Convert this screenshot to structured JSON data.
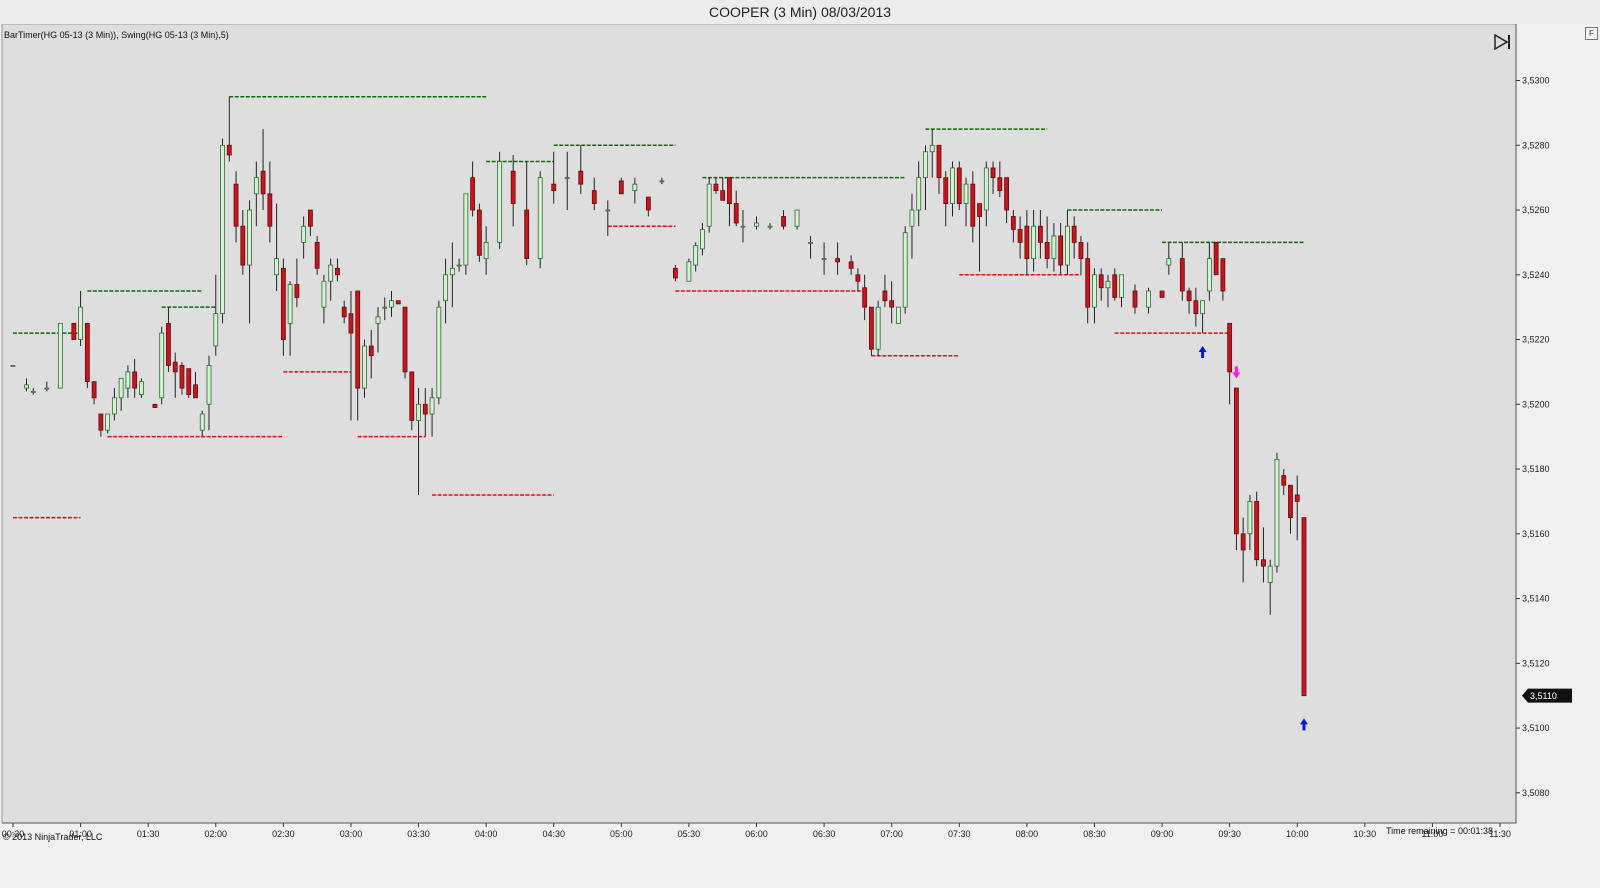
{
  "window": {
    "title": "COOPER (3 Min)  08/03/2013"
  },
  "chart": {
    "indicator_label": "BarTimer(HG 05-13 (3 Min)), Swing(HG 05-13 (3 Min),5)",
    "copyright": "© 2013 NinjaTrader, LLC",
    "time_remaining": "Time remaining = 00:01:38",
    "last_price": "3,5110",
    "menu_button": "F",
    "colors": {
      "up_fill": "#d6f0d6",
      "up_border": "#2e6b2e",
      "down_fill": "#c4161c",
      "swing_high": "#0a6e0a",
      "swing_low": "#e01010",
      "arrow_up": "#0018e0",
      "arrow_down": "#ff1ad9",
      "background": "#dedede"
    },
    "icons": {
      "scroll_end": "scroll-to-end-icon"
    }
  },
  "chart_data": {
    "type": "candlestick",
    "x_ticks": [
      "00:30",
      "01:00",
      "01:30",
      "02:00",
      "02:30",
      "03:00",
      "03:30",
      "04:00",
      "04:30",
      "05:00",
      "05:30",
      "06:00",
      "06:30",
      "07:00",
      "07:30",
      "08:00",
      "08:30",
      "09:00",
      "09:30",
      "10:00",
      "10:30",
      "11:00",
      "11:30"
    ],
    "y_ticks": [
      "3,5080",
      "3,5100",
      "3,5120",
      "3,5140",
      "3,5160",
      "3,5180",
      "3,5200",
      "3,5220",
      "3,5240",
      "3,5260",
      "3,5280",
      "3,5300"
    ],
    "y_values": [
      3.508,
      3.51,
      3.512,
      3.514,
      3.516,
      3.518,
      3.52,
      3.522,
      3.524,
      3.526,
      3.528,
      3.53
    ],
    "ylim": [
      3.5072,
      3.5318
    ],
    "xlim": [
      "00:30",
      "11:30"
    ],
    "grid": false,
    "candles": [
      [
        "00:30",
        3.5212,
        3.5212,
        3.5212,
        3.5212
      ],
      [
        "00:36",
        3.5205,
        3.5208,
        3.5204,
        3.5206
      ],
      [
        "00:39",
        3.5204,
        3.5205,
        3.5203,
        3.5204
      ],
      [
        "00:45",
        3.5205,
        3.5207,
        3.5204,
        3.5205
      ],
      [
        "00:51",
        3.5205,
        3.5225,
        3.5205,
        3.5225
      ],
      [
        "00:57",
        3.5225,
        3.5225,
        3.522,
        3.522
      ],
      [
        "01:00",
        3.522,
        3.5235,
        3.5218,
        3.523
      ],
      [
        "01:03",
        3.5225,
        3.5225,
        3.5205,
        3.5207
      ],
      [
        "01:06",
        3.5207,
        3.5207,
        3.52,
        3.5202
      ],
      [
        "01:09",
        3.5197,
        3.5197,
        3.519,
        3.5192
      ],
      [
        "01:12",
        3.5192,
        3.5197,
        3.5191,
        3.5197
      ],
      [
        "01:15",
        3.5197,
        3.5205,
        3.5195,
        3.5202
      ],
      [
        "01:18",
        3.5202,
        3.5208,
        3.5198,
        3.5208
      ],
      [
        "01:21",
        3.5205,
        3.5212,
        3.5202,
        3.521
      ],
      [
        "01:24",
        3.521,
        3.5214,
        3.5202,
        3.5205
      ],
      [
        "01:27",
        3.5203,
        3.5208,
        3.5202,
        3.5207
      ],
      [
        "01:33",
        3.52,
        3.52,
        3.5199,
        3.5199
      ],
      [
        "01:36",
        3.5202,
        3.5224,
        3.52,
        3.5222
      ],
      [
        "01:39",
        3.5225,
        3.523,
        3.521,
        3.5212
      ],
      [
        "01:42",
        3.5213,
        3.5216,
        3.5202,
        3.521
      ],
      [
        "01:45",
        3.5212,
        3.5213,
        3.5203,
        3.5205
      ],
      [
        "01:48",
        3.5211,
        3.5211,
        3.5202,
        3.5203
      ],
      [
        "01:51",
        3.5206,
        3.521,
        3.5202,
        3.5202
      ],
      [
        "01:54",
        3.5192,
        3.5198,
        3.519,
        3.5197
      ],
      [
        "01:57",
        3.52,
        3.5215,
        3.5192,
        3.5212
      ],
      [
        "02:00",
        3.5218,
        3.524,
        3.5215,
        3.5228
      ],
      [
        "02:03",
        3.5228,
        3.5282,
        3.5225,
        3.528
      ],
      [
        "02:06",
        3.528,
        3.5295,
        3.5275,
        3.5277
      ],
      [
        "02:09",
        3.5268,
        3.5272,
        3.525,
        3.5255
      ],
      [
        "02:12",
        3.5255,
        3.526,
        3.524,
        3.5243
      ],
      [
        "02:15",
        3.5243,
        3.5263,
        3.5225,
        3.526
      ],
      [
        "02:18",
        3.5265,
        3.5275,
        3.5255,
        3.527
      ],
      [
        "02:21",
        3.5272,
        3.5285,
        3.526,
        3.5265
      ],
      [
        "02:24",
        3.5265,
        3.5275,
        3.525,
        3.5255
      ],
      [
        "02:27",
        3.524,
        3.5262,
        3.5235,
        3.5245
      ],
      [
        "02:30",
        3.5242,
        3.5245,
        3.5215,
        3.522
      ],
      [
        "02:33",
        3.5225,
        3.5238,
        3.5215,
        3.5237
      ],
      [
        "02:36",
        3.5237,
        3.5245,
        3.523,
        3.5233
      ],
      [
        "02:39",
        3.525,
        3.5258,
        3.5245,
        3.5255
      ],
      [
        "02:42",
        3.526,
        3.526,
        3.5252,
        3.5255
      ],
      [
        "02:45",
        3.525,
        3.5252,
        3.524,
        3.5242
      ],
      [
        "02:48",
        3.523,
        3.524,
        3.5225,
        3.5238
      ],
      [
        "02:51",
        3.5238,
        3.5245,
        3.5232,
        3.5243
      ],
      [
        "02:54",
        3.5242,
        3.5245,
        3.5238,
        3.524
      ],
      [
        "02:57",
        3.523,
        3.5232,
        3.5225,
        3.5227
      ],
      [
        "03:00",
        3.5228,
        3.5235,
        3.5195,
        3.5222
      ],
      [
        "03:03",
        3.5235,
        3.5235,
        3.5195,
        3.5205
      ],
      [
        "03:06",
        3.5205,
        3.522,
        3.5202,
        3.5218
      ],
      [
        "03:09",
        3.5218,
        3.5223,
        3.5208,
        3.5215
      ],
      [
        "03:12",
        3.5225,
        3.523,
        3.5216,
        3.5227
      ],
      [
        "03:15",
        3.523,
        3.5233,
        3.5226,
        3.523
      ],
      [
        "03:18",
        3.523,
        3.5235,
        3.5227,
        3.5232
      ],
      [
        "03:21",
        3.5232,
        3.5232,
        3.5231,
        3.5231
      ],
      [
        "03:24",
        3.523,
        3.523,
        3.5208,
        3.521
      ],
      [
        "03:27",
        3.521,
        3.521,
        3.5192,
        3.5195
      ],
      [
        "03:30",
        3.5195,
        3.5205,
        3.5172,
        3.52
      ],
      [
        "03:33",
        3.52,
        3.5205,
        3.519,
        3.5197
      ],
      [
        "03:36",
        3.5197,
        3.5205,
        3.519,
        3.5202
      ],
      [
        "03:39",
        3.5202,
        3.5232,
        3.52,
        3.523
      ],
      [
        "03:42",
        3.5232,
        3.5245,
        3.5225,
        3.524
      ],
      [
        "03:45",
        3.524,
        3.525,
        3.523,
        3.5242
      ],
      [
        "03:48",
        3.5243,
        3.5245,
        3.5241,
        3.5243
      ],
      [
        "03:51",
        3.5243,
        3.5265,
        3.524,
        3.5265
      ],
      [
        "03:54",
        3.527,
        3.5275,
        3.5258,
        3.526
      ],
      [
        "03:57",
        3.526,
        3.5262,
        3.5244,
        3.5246
      ],
      [
        "04:00",
        3.5245,
        3.5255,
        3.524,
        3.525
      ],
      [
        "04:06",
        3.525,
        3.5278,
        3.5248,
        3.5275
      ],
      [
        "04:12",
        3.5272,
        3.5277,
        3.5255,
        3.5262
      ],
      [
        "04:18",
        3.526,
        3.5275,
        3.5243,
        3.5245
      ],
      [
        "04:24",
        3.5245,
        3.5272,
        3.5242,
        3.527
      ],
      [
        "04:30",
        3.5268,
        3.5278,
        3.5262,
        3.5266
      ],
      [
        "04:36",
        3.527,
        3.5278,
        3.526,
        3.527
      ],
      [
        "04:42",
        3.5272,
        3.528,
        3.5265,
        3.5268
      ],
      [
        "04:48",
        3.5266,
        3.527,
        3.526,
        3.5262
      ],
      [
        "04:54",
        3.526,
        3.5263,
        3.5252,
        3.526
      ],
      [
        "05:00",
        3.5269,
        3.527,
        3.5265,
        3.5265
      ],
      [
        "05:06",
        3.5266,
        3.527,
        3.5262,
        3.5268
      ],
      [
        "05:12",
        3.5264,
        3.5264,
        3.5258,
        3.526
      ],
      [
        "05:18",
        3.5269,
        3.527,
        3.5268,
        3.5269
      ],
      [
        "05:24",
        3.5242,
        3.5243,
        3.5238,
        3.5239
      ],
      [
        "05:30",
        3.5238,
        3.5245,
        3.5238,
        3.5244
      ],
      [
        "05:33",
        3.5243,
        3.525,
        3.5241,
        3.5249
      ],
      [
        "05:36",
        3.5248,
        3.5256,
        3.5246,
        3.5254
      ],
      [
        "05:39",
        3.5255,
        3.527,
        3.5253,
        3.5268
      ],
      [
        "05:42",
        3.5268,
        3.527,
        3.5265,
        3.5266
      ],
      [
        "05:45",
        3.5266,
        3.527,
        3.5263,
        3.5263
      ],
      [
        "05:48",
        3.527,
        3.527,
        3.5255,
        3.5262
      ],
      [
        "05:51",
        3.5262,
        3.5266,
        3.5255,
        3.5256
      ],
      [
        "05:54",
        3.5255,
        3.526,
        3.525,
        3.5255
      ],
      [
        "06:00",
        3.5255,
        3.5258,
        3.5254,
        3.5256
      ],
      [
        "06:06",
        3.5255,
        3.5256,
        3.5254,
        3.5255
      ],
      [
        "06:12",
        3.5258,
        3.526,
        3.5254,
        3.5255
      ],
      [
        "06:18",
        3.5255,
        3.526,
        3.5254,
        3.526
      ],
      [
        "06:24",
        3.525,
        3.5252,
        3.5245,
        3.525
      ],
      [
        "06:30",
        3.5245,
        3.525,
        3.524,
        3.5245
      ],
      [
        "06:36",
        3.5245,
        3.525,
        3.524,
        3.5244
      ],
      [
        "06:42",
        3.5244,
        3.5246,
        3.524,
        3.5242
      ],
      [
        "06:45",
        3.524,
        3.5242,
        3.5235,
        3.5238
      ],
      [
        "06:48",
        3.5236,
        3.524,
        3.5226,
        3.523
      ],
      [
        "06:51",
        3.523,
        3.523,
        3.5215,
        3.5217
      ],
      [
        "06:54",
        3.5217,
        3.5232,
        3.5215,
        3.523
      ],
      [
        "06:57",
        3.5235,
        3.524,
        3.523,
        3.5232
      ],
      [
        "07:00",
        3.5232,
        3.5238,
        3.5225,
        3.523
      ],
      [
        "07:03",
        3.5225,
        3.523,
        3.5225,
        3.523
      ],
      [
        "07:06",
        3.523,
        3.5255,
        3.5228,
        3.5253
      ],
      [
        "07:09",
        3.5255,
        3.5265,
        3.5245,
        3.526
      ],
      [
        "07:12",
        3.526,
        3.5275,
        3.5255,
        3.527
      ],
      [
        "07:15",
        3.527,
        3.528,
        3.526,
        3.5278
      ],
      [
        "07:18",
        3.5278,
        3.5285,
        3.527,
        3.528
      ],
      [
        "07:21",
        3.528,
        3.528,
        3.5265,
        3.527
      ],
      [
        "07:24",
        3.527,
        3.5272,
        3.5255,
        3.5262
      ],
      [
        "07:27",
        3.5262,
        3.5275,
        3.5258,
        3.5273
      ],
      [
        "07:30",
        3.5273,
        3.5275,
        3.526,
        3.5262
      ],
      [
        "07:33",
        3.5262,
        3.527,
        3.5255,
        3.5268
      ],
      [
        "07:36",
        3.5268,
        3.5272,
        3.525,
        3.5255
      ],
      [
        "07:39",
        3.5262,
        3.5262,
        3.5241,
        3.5258
      ],
      [
        "07:42",
        3.526,
        3.5275,
        3.5255,
        3.5273
      ],
      [
        "07:45",
        3.5273,
        3.5275,
        3.5265,
        3.527
      ],
      [
        "07:48",
        3.527,
        3.5275,
        3.5264,
        3.5266
      ],
      [
        "07:51",
        3.527,
        3.527,
        3.5256,
        3.526
      ],
      [
        "07:54",
        3.5258,
        3.526,
        3.525,
        3.5254
      ],
      [
        "07:57",
        3.5254,
        3.5258,
        3.5245,
        3.525
      ],
      [
        "08:00",
        3.5255,
        3.526,
        3.524,
        3.5245
      ],
      [
        "08:03",
        3.5245,
        3.526,
        3.5241,
        3.5255
      ],
      [
        "08:06",
        3.5255,
        3.526,
        3.5245,
        3.525
      ],
      [
        "08:09",
        3.525,
        3.5258,
        3.5242,
        3.5245
      ],
      [
        "08:12",
        3.5245,
        3.5256,
        3.5241,
        3.5252
      ],
      [
        "08:15",
        3.5252,
        3.5256,
        3.524,
        3.5243
      ],
      [
        "08:18",
        3.5243,
        3.526,
        3.524,
        3.5255
      ],
      [
        "08:21",
        3.5255,
        3.5258,
        3.5245,
        3.525
      ],
      [
        "08:24",
        3.525,
        3.5252,
        3.524,
        3.5245
      ],
      [
        "08:27",
        3.5245,
        3.525,
        3.5225,
        3.523
      ],
      [
        "08:30",
        3.523,
        3.5242,
        3.5225,
        3.524
      ],
      [
        "08:33",
        3.524,
        3.5242,
        3.5232,
        3.5236
      ],
      [
        "08:36",
        3.5236,
        3.524,
        3.523,
        3.5238
      ],
      [
        "08:39",
        3.524,
        3.5242,
        3.5232,
        3.5233
      ],
      [
        "08:42",
        3.5233,
        3.524,
        3.523,
        3.524
      ],
      [
        "08:48",
        3.5235,
        3.5237,
        3.5228,
        3.523
      ],
      [
        "08:54",
        3.523,
        3.5236,
        3.5228,
        3.5235
      ],
      [
        "09:00",
        3.5235,
        3.5235,
        3.5233,
        3.5233
      ],
      [
        "09:03",
        3.5243,
        3.525,
        3.524,
        3.5245
      ],
      [
        "09:09",
        3.5245,
        3.525,
        3.5232,
        3.5235
      ],
      [
        "09:12",
        3.5235,
        3.5236,
        3.5228,
        3.5232
      ],
      [
        "09:15",
        3.5232,
        3.5236,
        3.5224,
        3.5228
      ],
      [
        "09:18",
        3.5228,
        3.5232,
        3.5222,
        3.5232
      ],
      [
        "09:21",
        3.5235,
        3.525,
        3.5232,
        3.5245
      ],
      [
        "09:24",
        3.525,
        3.525,
        3.524,
        3.524
      ],
      [
        "09:27",
        3.5245,
        3.5245,
        3.5232,
        3.5235
      ],
      [
        "09:30",
        3.5225,
        3.5225,
        3.52,
        3.521
      ],
      [
        "09:33",
        3.5205,
        3.5205,
        3.5155,
        3.516
      ],
      [
        "09:36",
        3.516,
        3.5165,
        3.5145,
        3.5155
      ],
      [
        "09:39",
        3.516,
        3.5172,
        3.5155,
        3.517
      ],
      [
        "09:42",
        3.517,
        3.5173,
        3.515,
        3.5152
      ],
      [
        "09:45",
        3.5152,
        3.5162,
        3.5145,
        3.515
      ],
      [
        "09:48",
        3.5145,
        3.5152,
        3.5135,
        3.515
      ],
      [
        "09:51",
        3.515,
        3.5185,
        3.5148,
        3.5183
      ],
      [
        "09:54",
        3.5178,
        3.518,
        3.5172,
        3.5175
      ],
      [
        "09:57",
        3.5175,
        3.5175,
        3.516,
        3.5165
      ],
      [
        "10:00",
        3.5172,
        3.5178,
        3.5158,
        3.517
      ],
      [
        "10:03",
        3.5165,
        3.5165,
        3.511,
        3.511
      ]
    ],
    "swing_highs": [
      [
        "00:30",
        "01:00",
        3.5222
      ],
      [
        "01:03",
        "01:54",
        3.5235
      ],
      [
        "01:36",
        "02:00",
        3.523
      ],
      [
        "02:06",
        "04:00",
        3.5295
      ],
      [
        "04:00",
        "04:30",
        3.5275
      ],
      [
        "04:30",
        "05:24",
        3.528
      ],
      [
        "05:36",
        "07:06",
        3.527
      ],
      [
        "07:15",
        "08:09",
        3.5285
      ],
      [
        "08:18",
        "09:00",
        3.526
      ],
      [
        "09:00",
        "10:03",
        3.525
      ]
    ],
    "swing_lows": [
      [
        "00:30",
        "01:00",
        3.5165
      ],
      [
        "01:12",
        "02:30",
        3.519
      ],
      [
        "02:30",
        "03:00",
        3.521
      ],
      [
        "03:03",
        "03:33",
        3.519
      ],
      [
        "03:36",
        "04:30",
        3.5172
      ],
      [
        "04:54",
        "05:24",
        3.5255
      ],
      [
        "05:24",
        "06:48",
        3.5235
      ],
      [
        "06:51",
        "07:30",
        3.5215
      ],
      [
        "07:30",
        "08:24",
        3.524
      ],
      [
        "08:39",
        "09:30",
        3.5222
      ]
    ],
    "markers": [
      {
        "type": "arrow-up",
        "time": "09:18",
        "price": 3.5218
      },
      {
        "type": "arrow-down",
        "time": "09:33",
        "price": 3.5208
      },
      {
        "type": "arrow-up",
        "time": "10:03",
        "price": 3.5103
      }
    ]
  }
}
